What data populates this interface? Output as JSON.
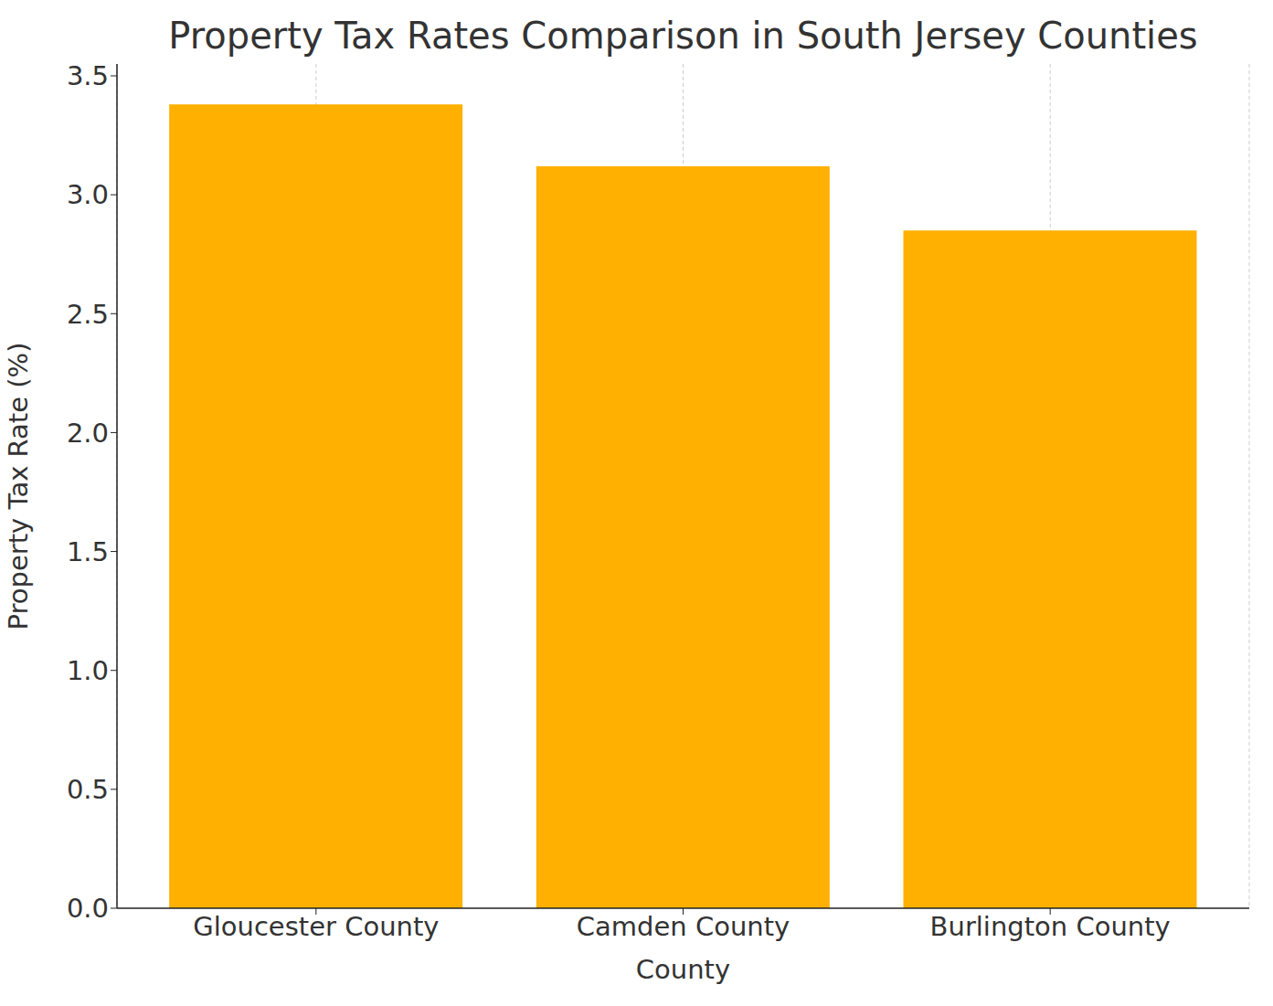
{
  "chart_data": {
    "type": "bar",
    "title": "Property Tax Rates Comparison in South Jersey Counties",
    "x_label": "County",
    "y_label": "Property Tax Rate (%)",
    "categories": [
      "Gloucester County",
      "Camden County",
      "Burlington County"
    ],
    "values": [
      3.38,
      3.12,
      2.85
    ],
    "color": "#ffb000",
    "ylim": [
      0,
      3.55
    ],
    "yticks": [
      {
        "value": 0,
        "label": "0.0"
      },
      0.5,
      {
        "value": 1,
        "label": "1.0"
      },
      1.5,
      {
        "value": 2,
        "label": "2.0"
      },
      2.5,
      {
        "value": 3,
        "label": "3.0"
      },
      3.5
    ],
    "grid": "x"
  }
}
